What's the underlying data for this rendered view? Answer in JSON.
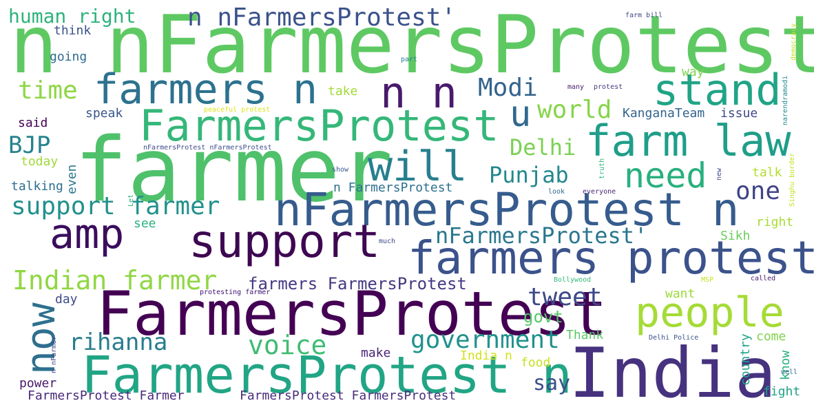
{
  "words": [
    {
      "text": "n nFarmersProtest",
      "color": "#5ec962"
    },
    {
      "text": "farmer",
      "color": "#4fc16b"
    },
    {
      "text": "FarmersProtest",
      "color": "#440154"
    },
    {
      "text": "India",
      "color": "#46327e"
    },
    {
      "text": "nFarmersProtest n",
      "color": "#365c8d"
    },
    {
      "text": "farmers protest",
      "color": "#3b528b"
    },
    {
      "text": "FarmersProtest n",
      "color": "#21a585"
    },
    {
      "text": "FarmersProtest",
      "color": "#35b779"
    },
    {
      "text": "support",
      "color": "#3e0751"
    },
    {
      "text": "farm law",
      "color": "#1f9e89"
    },
    {
      "text": "farmers n",
      "color": "#2c728e"
    },
    {
      "text": "n n",
      "color": "#481a6c"
    },
    {
      "text": "stand",
      "color": "#20a486"
    },
    {
      "text": "will",
      "color": "#277f8e"
    },
    {
      "text": "people",
      "color": "#a5db36"
    },
    {
      "text": "amp",
      "color": "#3a0d5d"
    },
    {
      "text": "now",
      "color": "#2e6f8e"
    },
    {
      "text": "need",
      "color": "#2ab07f"
    },
    {
      "text": "u",
      "color": "#31688e"
    },
    {
      "text": "Indian farmer",
      "color": "#90d743"
    },
    {
      "text": "support farmer",
      "color": "#21918c"
    },
    {
      "text": "voice",
      "color": "#3fbc73"
    },
    {
      "text": "government",
      "color": "#20928c"
    },
    {
      "text": "rihanna",
      "color": "#287c8e"
    },
    {
      "text": "tweet",
      "color": "#3e4989"
    },
    {
      "text": "world",
      "color": "#86d549"
    },
    {
      "text": "Modi",
      "color": "#33638d"
    },
    {
      "text": "time",
      "color": "#8ed645"
    },
    {
      "text": "human right",
      "color": "#2db27d"
    },
    {
      "text": "n nFarmersProtest'",
      "color": "#3b528b"
    },
    {
      "text": "nFarmersProtest'",
      "color": "#2a778e"
    },
    {
      "text": "Punjab",
      "color": "#23888e"
    },
    {
      "text": "one",
      "color": "#414487"
    },
    {
      "text": "Delhi",
      "color": "#7ad151"
    },
    {
      "text": "BJP",
      "color": "#26828e"
    },
    {
      "text": "farmers FarmersProtest",
      "color": "#443a83"
    },
    {
      "text": "say",
      "color": "#3c4f8a"
    },
    {
      "text": "govt",
      "color": "#55c667"
    },
    {
      "text": "FarmersProtest FarmersProtest",
      "color": "#472d7b"
    },
    {
      "text": "FarmersProtest Farmer",
      "color": "#482878"
    },
    {
      "text": "KanganaTeam",
      "color": "#32648e"
    },
    {
      "text": "issue",
      "color": "#3f4788"
    },
    {
      "text": "speak",
      "color": "#39558c"
    },
    {
      "text": "said",
      "color": "#440154"
    },
    {
      "text": "today",
      "color": "#a0da39"
    },
    {
      "text": "talking",
      "color": "#2e6e8e"
    },
    {
      "text": "n FarmersProtest",
      "color": "#2d708e"
    },
    {
      "text": "talk",
      "color": "#b5de2b"
    },
    {
      "text": "right",
      "color": "#a8db34"
    },
    {
      "text": "Sikh",
      "color": "#6ccd5a"
    },
    {
      "text": "want",
      "color": "#9bd93c"
    },
    {
      "text": "day",
      "color": "#3e4a89"
    },
    {
      "text": "make",
      "color": "#482475"
    },
    {
      "text": "power",
      "color": "#48186a"
    },
    {
      "text": "Thank",
      "color": "#58c765"
    },
    {
      "text": "come",
      "color": "#81d34d"
    },
    {
      "text": "India n",
      "color": "#d2e21b"
    },
    {
      "text": "food",
      "color": "#c8e020"
    },
    {
      "text": "fight",
      "color": "#1fa188"
    },
    {
      "text": "think",
      "color": "#3b518b"
    },
    {
      "text": "going",
      "color": "#2f6b8e"
    },
    {
      "text": "take",
      "color": "#a2da37"
    },
    {
      "text": "way",
      "color": "#7fd34e"
    },
    {
      "text": "see",
      "color": "#2db27d"
    },
    {
      "text": "even",
      "color": "#2a768e"
    },
    {
      "text": "country",
      "color": "#20a386"
    },
    {
      "text": "know",
      "color": "#28ae80"
    },
    {
      "text": "farm bill",
      "color": "#3f4788"
    },
    {
      "text": "democracy",
      "color": "#c0df25"
    },
    {
      "text": "narendramodi",
      "color": "#23898e"
    },
    {
      "text": "part",
      "color": "#277f8e"
    },
    {
      "text": "many",
      "color": "#481d6f"
    },
    {
      "text": "protest",
      "color": "#44397d"
    },
    {
      "text": "peaceful protest",
      "color": "#dde318"
    },
    {
      "text": "nFarmersProtest nFarmersProtest",
      "color": "#3e4c8a"
    },
    {
      "text": "show",
      "color": "#39568c"
    },
    {
      "text": "truth",
      "color": "#2fb47c"
    },
    {
      "text": "Singhu border",
      "color": "#c5e021"
    },
    {
      "text": "new",
      "color": "#3f4889"
    },
    {
      "text": "look",
      "color": "#31688e"
    },
    {
      "text": "everyone",
      "color": "#482677"
    },
    {
      "text": "Let",
      "color": "#2db27d"
    },
    {
      "text": "much",
      "color": "#3f4889"
    },
    {
      "text": "protesting farmer",
      "color": "#3b0f70"
    },
    {
      "text": "Bollywood",
      "color": "#35b779"
    },
    {
      "text": "MSP",
      "color": "#c5e021"
    },
    {
      "text": "called",
      "color": "#481769"
    },
    {
      "text": "n nFarmer",
      "color": "#404688"
    },
    {
      "text": "Delhi Police",
      "color": "#3b528b"
    },
    {
      "text": "well",
      "color": "#2c738e"
    }
  ]
}
